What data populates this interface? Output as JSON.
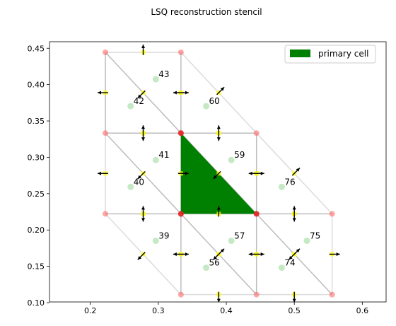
{
  "chart_data": {
    "type": "scatter",
    "title": "LSQ reconstruction stencil",
    "xlabel": "",
    "ylabel": "",
    "xlim": [
      0.14,
      0.635
    ],
    "ylim": [
      0.101,
      0.459
    ],
    "xticks": [
      "0.2",
      "0.3",
      "0.4",
      "0.5",
      "0.6"
    ],
    "xtick_values": [
      0.2,
      0.3,
      0.4,
      0.5,
      0.6
    ],
    "yticks": [
      "0.10",
      "0.15",
      "0.20",
      "0.25",
      "0.30",
      "0.35",
      "0.40",
      "0.45"
    ],
    "ytick_values": [
      0.1,
      0.15,
      0.2,
      0.25,
      0.3,
      0.35,
      0.4,
      0.45
    ],
    "grid": false,
    "legend": {
      "position": "top-right",
      "entries": [
        {
          "label": "primary cell",
          "color": "#008000"
        }
      ]
    },
    "colors": {
      "primary_cell": "#008000",
      "edge_dark": "#bdbdbd",
      "edge_light": "#dcdcdc",
      "vertex": "#ff6b6b",
      "vertex_primary": "#e02020",
      "centroid": "#b7e4b7",
      "face_midpoint": "#ffff00",
      "normal_arrow": "#000000"
    },
    "primary_cell": [
      [
        0.3333,
        0.3333
      ],
      [
        0.4444,
        0.2222
      ],
      [
        0.3333,
        0.2222
      ]
    ],
    "vertices": [
      [
        0.2222,
        0.4444
      ],
      [
        0.3333,
        0.4444
      ],
      [
        0.2222,
        0.3333
      ],
      [
        0.3333,
        0.3333
      ],
      [
        0.4444,
        0.3333
      ],
      [
        0.2222,
        0.2222
      ],
      [
        0.3333,
        0.2222
      ],
      [
        0.4444,
        0.2222
      ],
      [
        0.5556,
        0.2222
      ],
      [
        0.3333,
        0.1111
      ],
      [
        0.4444,
        0.1111
      ],
      [
        0.5556,
        0.1111
      ]
    ],
    "primary_vertices": [
      [
        0.3333,
        0.3333
      ],
      [
        0.3333,
        0.2222
      ],
      [
        0.4444,
        0.2222
      ]
    ],
    "edges_dark": [
      [
        [
          0.2222,
          0.4444
        ],
        [
          0.3333,
          0.3333
        ]
      ],
      [
        [
          0.3333,
          0.4444
        ],
        [
          0.3333,
          0.3333
        ]
      ],
      [
        [
          0.2222,
          0.3333
        ],
        [
          0.3333,
          0.3333
        ]
      ],
      [
        [
          0.3333,
          0.3333
        ],
        [
          0.4444,
          0.3333
        ]
      ],
      [
        [
          0.2222,
          0.3333
        ],
        [
          0.3333,
          0.2222
        ]
      ],
      [
        [
          0.3333,
          0.3333
        ],
        [
          0.3333,
          0.2222
        ]
      ],
      [
        [
          0.3333,
          0.3333
        ],
        [
          0.4444,
          0.2222
        ]
      ],
      [
        [
          0.4444,
          0.3333
        ],
        [
          0.4444,
          0.2222
        ]
      ],
      [
        [
          0.2222,
          0.2222
        ],
        [
          0.3333,
          0.2222
        ]
      ],
      [
        [
          0.3333,
          0.2222
        ],
        [
          0.4444,
          0.2222
        ]
      ],
      [
        [
          0.4444,
          0.2222
        ],
        [
          0.5556,
          0.2222
        ]
      ],
      [
        [
          0.3333,
          0.2222
        ],
        [
          0.4444,
          0.1111
        ]
      ],
      [
        [
          0.4444,
          0.2222
        ],
        [
          0.5556,
          0.1111
        ]
      ],
      [
        [
          0.3333,
          0.2222
        ],
        [
          0.3333,
          0.1111
        ]
      ],
      [
        [
          0.4444,
          0.2222
        ],
        [
          0.4444,
          0.1111
        ]
      ],
      [
        [
          0.2222,
          0.4444
        ],
        [
          0.2222,
          0.3333
        ]
      ]
    ],
    "edges_light": [
      [
        [
          0.2222,
          0.4444
        ],
        [
          0.3333,
          0.4444
        ]
      ],
      [
        [
          0.3333,
          0.4444
        ],
        [
          0.4444,
          0.3333
        ]
      ],
      [
        [
          0.2222,
          0.3333
        ],
        [
          0.2222,
          0.2222
        ]
      ],
      [
        [
          0.4444,
          0.3333
        ],
        [
          0.5556,
          0.2222
        ]
      ],
      [
        [
          0.2222,
          0.2222
        ],
        [
          0.3333,
          0.1111
        ]
      ],
      [
        [
          0.3333,
          0.1111
        ],
        [
          0.4444,
          0.1111
        ]
      ],
      [
        [
          0.4444,
          0.1111
        ],
        [
          0.5556,
          0.1111
        ]
      ],
      [
        [
          0.5556,
          0.2222
        ],
        [
          0.5556,
          0.1111
        ]
      ]
    ],
    "centroids": [
      {
        "label": "42",
        "x": 0.2593,
        "y": 0.3704
      },
      {
        "label": "43",
        "x": 0.2963,
        "y": 0.4074
      },
      {
        "label": "60",
        "x": 0.3704,
        "y": 0.3704
      },
      {
        "label": "40",
        "x": 0.2593,
        "y": 0.2593
      },
      {
        "label": "41",
        "x": 0.2963,
        "y": 0.2963
      },
      {
        "label": "59",
        "x": 0.4074,
        "y": 0.2963
      },
      {
        "label": "76",
        "x": 0.4815,
        "y": 0.2593
      },
      {
        "label": "39",
        "x": 0.2963,
        "y": 0.1852
      },
      {
        "label": "57",
        "x": 0.4074,
        "y": 0.1852
      },
      {
        "label": "56",
        "x": 0.3704,
        "y": 0.1481
      },
      {
        "label": "75",
        "x": 0.5185,
        "y": 0.1852
      },
      {
        "label": "74",
        "x": 0.4815,
        "y": 0.1481
      }
    ],
    "face_normals": [
      {
        "x": 0.2778,
        "y": 0.4444,
        "dx": 0,
        "dy": 1
      },
      {
        "x": 0.2222,
        "y": 0.3889,
        "dx": -1,
        "dy": 0
      },
      {
        "x": 0.2778,
        "y": 0.3889,
        "dx": -0.707,
        "dy": -0.707
      },
      {
        "x": 0.3333,
        "y": 0.3889,
        "dx": -1,
        "dy": 0
      },
      {
        "x": 0.3333,
        "y": 0.3889,
        "dx": 1,
        "dy": 0
      },
      {
        "x": 0.3889,
        "y": 0.3889,
        "dx": 0.707,
        "dy": 0.707
      },
      {
        "x": 0.2778,
        "y": 0.3333,
        "dx": 0,
        "dy": 1
      },
      {
        "x": 0.2778,
        "y": 0.3333,
        "dx": 0,
        "dy": -1
      },
      {
        "x": 0.3889,
        "y": 0.3333,
        "dx": 0,
        "dy": 1
      },
      {
        "x": 0.3889,
        "y": 0.3333,
        "dx": 0,
        "dy": -1
      },
      {
        "x": 0.2222,
        "y": 0.2778,
        "dx": -1,
        "dy": 0
      },
      {
        "x": 0.2778,
        "y": 0.2778,
        "dx": -0.707,
        "dy": -0.707
      },
      {
        "x": 0.3333,
        "y": 0.2778,
        "dx": 1,
        "dy": 0
      },
      {
        "x": 0.3889,
        "y": 0.2778,
        "dx": -0.707,
        "dy": -0.707
      },
      {
        "x": 0.4444,
        "y": 0.2778,
        "dx": -1,
        "dy": 0
      },
      {
        "x": 0.4444,
        "y": 0.2778,
        "dx": 1,
        "dy": 0
      },
      {
        "x": 0.5,
        "y": 0.2778,
        "dx": 0.707,
        "dy": 0.707
      },
      {
        "x": 0.2778,
        "y": 0.2222,
        "dx": 0,
        "dy": 1
      },
      {
        "x": 0.2778,
        "y": 0.2222,
        "dx": 0,
        "dy": -1
      },
      {
        "x": 0.3889,
        "y": 0.2222,
        "dx": 0,
        "dy": 1
      },
      {
        "x": 0.5,
        "y": 0.2222,
        "dx": 0,
        "dy": 1
      },
      {
        "x": 0.5,
        "y": 0.2222,
        "dx": 0,
        "dy": -1
      },
      {
        "x": 0.2778,
        "y": 0.1667,
        "dx": -0.707,
        "dy": -0.707
      },
      {
        "x": 0.3333,
        "y": 0.1667,
        "dx": -1,
        "dy": 0
      },
      {
        "x": 0.3333,
        "y": 0.1667,
        "dx": 1,
        "dy": 0
      },
      {
        "x": 0.3889,
        "y": 0.1667,
        "dx": -0.707,
        "dy": -0.707
      },
      {
        "x": 0.3889,
        "y": 0.1667,
        "dx": 0.707,
        "dy": 0.707
      },
      {
        "x": 0.4444,
        "y": 0.1667,
        "dx": -1,
        "dy": 0
      },
      {
        "x": 0.4444,
        "y": 0.1667,
        "dx": 1,
        "dy": 0
      },
      {
        "x": 0.5,
        "y": 0.1667,
        "dx": -0.707,
        "dy": -0.707
      },
      {
        "x": 0.5,
        "y": 0.1667,
        "dx": 0.707,
        "dy": 0.707
      },
      {
        "x": 0.5556,
        "y": 0.1667,
        "dx": 1,
        "dy": 0
      },
      {
        "x": 0.3889,
        "y": 0.1111,
        "dx": 0,
        "dy": -1
      },
      {
        "x": 0.5,
        "y": 0.1111,
        "dx": 0,
        "dy": -1
      }
    ]
  }
}
